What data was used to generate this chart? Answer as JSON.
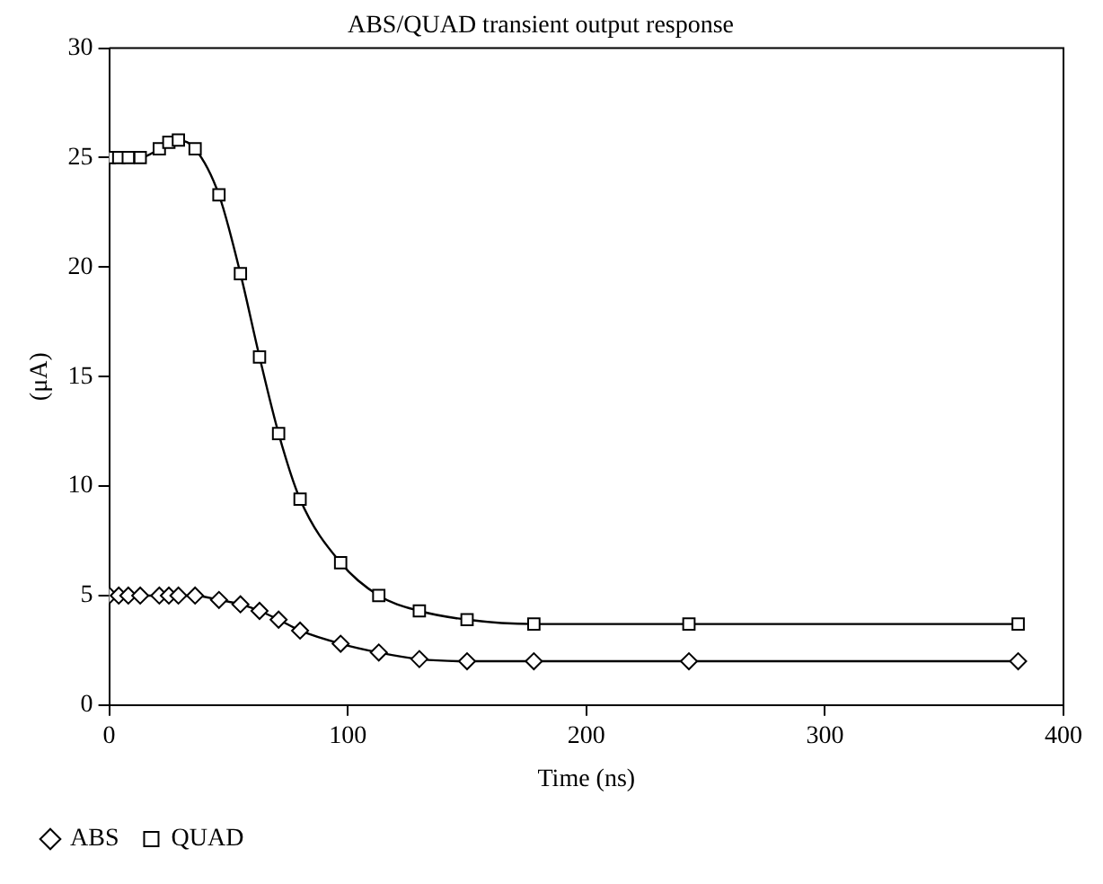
{
  "chart_data": {
    "type": "line",
    "title": "ABS/QUAD transient output response",
    "xlabel": "Time (ns)",
    "ylabel": "(μA)",
    "xlim": [
      0,
      400
    ],
    "xticks": [
      0,
      100,
      200,
      300,
      400
    ],
    "ylim": [
      0,
      30
    ],
    "yticks": [
      0,
      5,
      10,
      15,
      20,
      25,
      30
    ],
    "grid": false,
    "legend": "bottom left",
    "line_style": "solid",
    "series": [
      {
        "name": "ABS",
        "color": "#000000",
        "marker": "diamond",
        "x": [
          0,
          4,
          8,
          13,
          21,
          25,
          29,
          36,
          46,
          55,
          63,
          71,
          80,
          97,
          113,
          130,
          150,
          178,
          243,
          381
        ],
        "values": [
          5,
          5,
          5,
          5,
          5,
          5,
          5,
          5,
          4.8,
          4.6,
          4.3,
          3.9,
          3.4,
          2.8,
          2.4,
          2.1,
          2,
          2,
          2,
          2
        ]
      },
      {
        "name": "QUAD",
        "color": "#000000",
        "marker": "square",
        "x": [
          0,
          4,
          8,
          13,
          21,
          25,
          29,
          36,
          46,
          55,
          63,
          71,
          80,
          97,
          113,
          130,
          150,
          178,
          243,
          381
        ],
        "values": [
          25,
          25,
          25,
          25,
          25.4,
          25.7,
          25.8,
          25.4,
          23.3,
          19.7,
          15.9,
          12.4,
          9.4,
          6.5,
          5,
          4.3,
          3.9,
          3.7,
          3.7,
          3.7
        ]
      }
    ]
  }
}
